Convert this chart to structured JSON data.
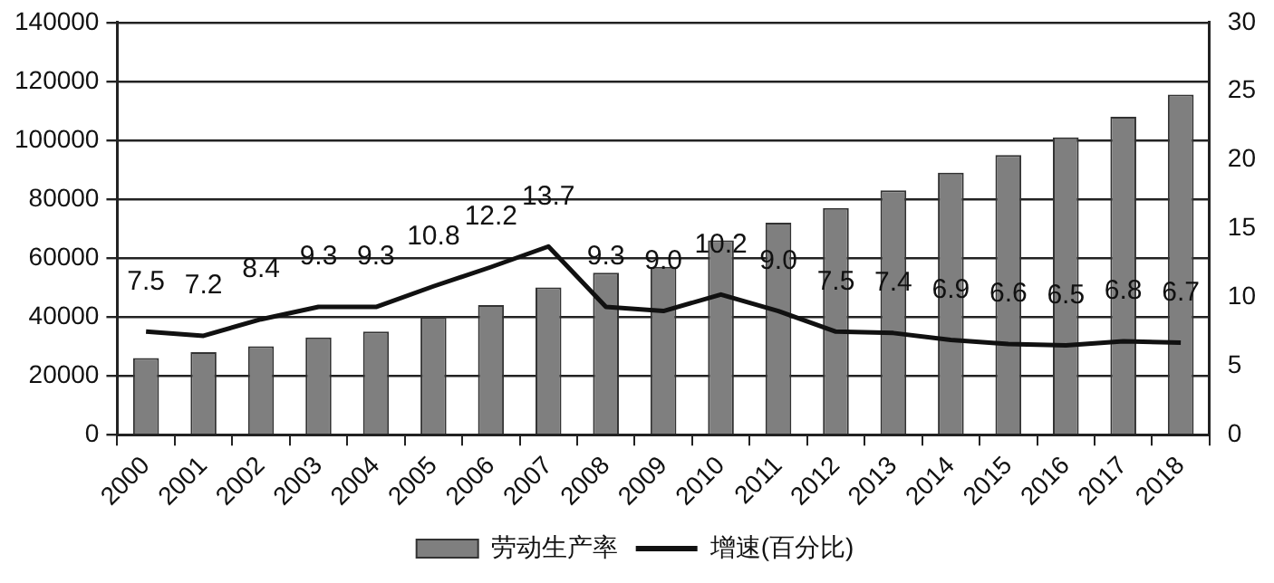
{
  "chart_data": {
    "type": "bar",
    "categories": [
      "2000",
      "2001",
      "2002",
      "2003",
      "2004",
      "2005",
      "2006",
      "2007",
      "2008",
      "2009",
      "2010",
      "2011",
      "2012",
      "2013",
      "2014",
      "2015",
      "2016",
      "2017",
      "2018"
    ],
    "series": [
      {
        "name": "劳动生产率",
        "color": "#7f7f7f",
        "values": [
          26000,
          28000,
          30000,
          33000,
          35000,
          40000,
          44000,
          50000,
          55000,
          57000,
          66000,
          72000,
          77000,
          83000,
          89000,
          95000,
          101000,
          108000,
          115500
        ]
      },
      {
        "name": "增速(百分比)",
        "type": "line",
        "axis": "y2",
        "color": "#111111",
        "values": [
          7.5,
          7.2,
          8.4,
          9.3,
          9.3,
          10.8,
          12.2,
          13.7,
          9.3,
          9.0,
          10.2,
          9.0,
          7.5,
          7.4,
          6.9,
          6.6,
          6.5,
          6.8,
          6.7
        ],
        "value_labels": [
          "7.5",
          "7.2",
          "8.4",
          "9.3",
          "9.3",
          "10.8",
          "12.2",
          "13.7",
          "9.3",
          "9.0",
          "10.2",
          "9.0",
          "7.5",
          "7.4",
          "6.9",
          "6.6",
          "6.5",
          "6.8",
          "6.7"
        ]
      }
    ],
    "ylim": [
      0,
      140000
    ],
    "yticks": [
      0,
      20000,
      40000,
      60000,
      80000,
      100000,
      120000,
      140000
    ],
    "y2lim": [
      0,
      30
    ],
    "y2ticks": [
      0,
      5,
      10,
      15,
      20,
      25,
      30
    ],
    "grid": "y",
    "legend": "bottom",
    "marker": "none",
    "line_style": "solid"
  }
}
